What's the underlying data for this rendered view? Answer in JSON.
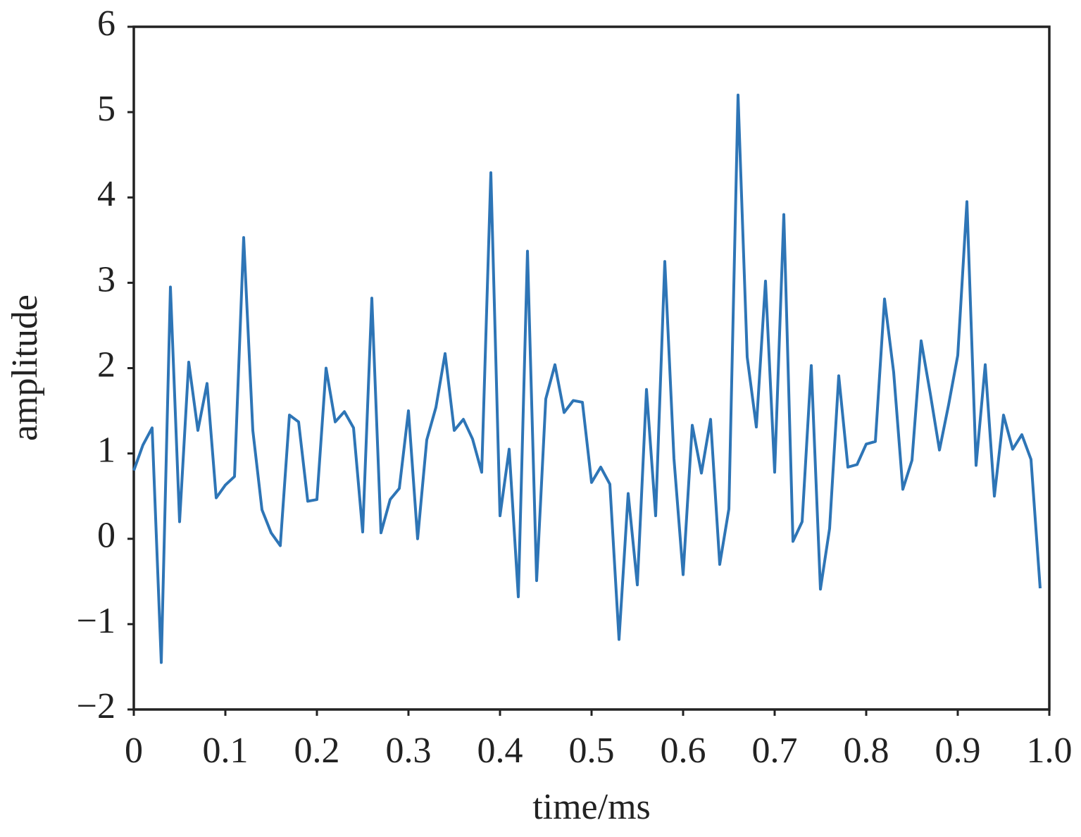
{
  "chart_data": {
    "type": "line",
    "x_label": "time/ms",
    "y_label": "amplitude",
    "x": [
      0,
      0.01,
      0.02,
      0.03,
      0.04,
      0.05,
      0.06,
      0.07,
      0.08,
      0.09,
      0.1,
      0.11,
      0.12,
      0.13,
      0.14,
      0.15,
      0.16,
      0.17,
      0.18,
      0.19,
      0.2,
      0.21,
      0.22,
      0.23,
      0.24,
      0.25,
      0.26,
      0.27,
      0.28,
      0.29,
      0.3,
      0.31,
      0.32,
      0.33,
      0.34,
      0.35,
      0.36,
      0.37,
      0.38,
      0.39,
      0.4,
      0.41,
      0.42,
      0.43,
      0.44,
      0.45,
      0.46,
      0.47,
      0.48,
      0.49,
      0.5,
      0.51,
      0.52,
      0.53,
      0.54,
      0.55,
      0.56,
      0.57,
      0.58,
      0.59,
      0.6,
      0.61,
      0.62,
      0.63,
      0.64,
      0.65,
      0.66,
      0.67,
      0.68,
      0.69,
      0.7,
      0.71,
      0.72,
      0.73,
      0.74,
      0.75,
      0.76,
      0.77,
      0.78,
      0.79,
      0.8,
      0.81,
      0.82,
      0.83,
      0.84,
      0.85,
      0.86,
      0.87,
      0.88,
      0.89,
      0.9,
      0.91,
      0.92,
      0.93,
      0.94,
      0.95,
      0.96,
      0.97,
      0.98,
      0.99
    ],
    "series": [
      {
        "color": "#2e75b6",
        "values": [
          0.8,
          1.1,
          1.3,
          -1.45,
          2.95,
          0.2,
          2.07,
          1.27,
          1.82,
          0.48,
          0.63,
          0.73,
          3.53,
          1.27,
          0.34,
          0.07,
          -0.08,
          1.45,
          1.37,
          0.44,
          0.46,
          2.0,
          1.37,
          1.49,
          1.3,
          0.08,
          2.82,
          0.07,
          0.46,
          0.59,
          1.5,
          0.0,
          1.16,
          1.54,
          2.17,
          1.27,
          1.4,
          1.17,
          0.78,
          4.29,
          0.27,
          1.05,
          -0.68,
          3.37,
          -0.49,
          1.64,
          2.04,
          1.48,
          1.62,
          1.6,
          0.66,
          0.84,
          0.64,
          -1.18,
          0.53,
          -0.54,
          1.75,
          0.27,
          3.25,
          0.94,
          -0.42,
          1.33,
          0.77,
          1.4,
          -0.3,
          0.35,
          5.2,
          2.13,
          1.31,
          3.02,
          0.78,
          3.8,
          -0.03,
          0.2,
          2.03,
          -0.59,
          0.12,
          1.91,
          0.84,
          0.87,
          1.11,
          1.14,
          2.81,
          1.95,
          0.58,
          0.92,
          2.32,
          1.7,
          1.04,
          1.57,
          2.15,
          3.95,
          0.86,
          2.04,
          0.5,
          1.45,
          1.05,
          1.22,
          0.93,
          -0.58
        ]
      }
    ],
    "xlim": [
      0,
      1
    ],
    "xticks": [
      0,
      0.1,
      0.2,
      0.3,
      0.4,
      0.5,
      0.6,
      0.7,
      0.8,
      0.9,
      {
        "value": 1,
        "label": "1.0"
      }
    ],
    "ylim": [
      -2,
      6
    ],
    "yticks": [
      {
        "value": -2,
        "label": "−2"
      },
      {
        "value": -1,
        "label": "−1"
      },
      0,
      1,
      2,
      3,
      4,
      5,
      6
    ]
  }
}
